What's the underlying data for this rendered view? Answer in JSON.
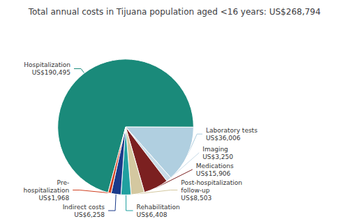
{
  "chart_data": {
    "type": "pie",
    "title": "Total annual costs in Tijuana population aged <16 years: US$268,794",
    "categories": [
      "Hospitalization",
      "Laboratory tests",
      "Imaging",
      "Medications",
      "Post-hospitalization\nfollow-up",
      "Rehabilitation",
      "Indirect costs",
      "Pre-\nhospitalization"
    ],
    "values": [
      190495,
      36006,
      3250,
      15906,
      8503,
      6408,
      6258,
      1968
    ],
    "value_labels": [
      "US$190,495",
      "US$36,006",
      "US$3,250",
      "US$15,906",
      "US$8,503",
      "US$6,408",
      "US$6,258",
      "US$1,968"
    ],
    "colors": [
      "#1a8a7a",
      "#b0cfe0",
      "#c8dce8",
      "#7b2020",
      "#d4c8a0",
      "#20a0a0",
      "#1a3a8a",
      "#d04020"
    ],
    "data_labels": true
  }
}
